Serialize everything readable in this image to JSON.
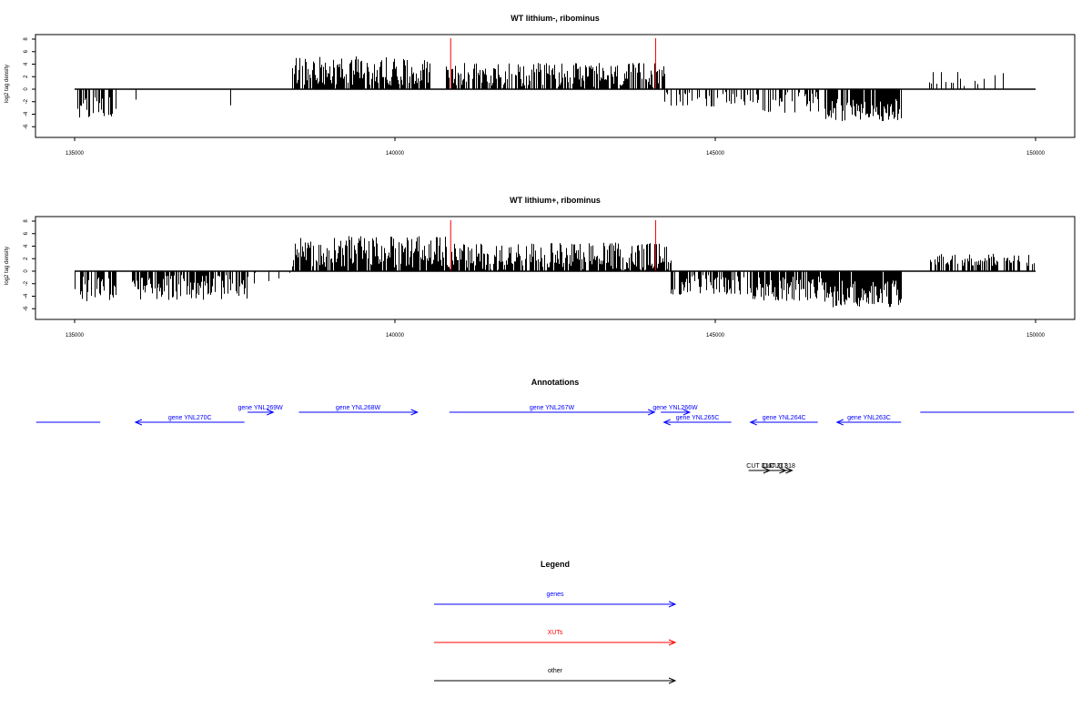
{
  "colors": {
    "genes": "#0000ff",
    "xuts": "#ff0000",
    "other": "#000000",
    "axis": "#000000"
  },
  "chart_data": [
    {
      "type": "bar",
      "title": "WT lithium-, ribominus",
      "ylabel": "log2 tag density",
      "xlim": [
        135000,
        150000
      ],
      "ylim": [
        -6,
        8
      ],
      "x_ticks": [
        135000,
        140000,
        145000,
        150000
      ],
      "x_tick_labels": [
        "135000",
        "140000",
        "145000",
        "150000"
      ],
      "y_ticks": [
        -6,
        -4,
        -2,
        0,
        2,
        4,
        6,
        8
      ],
      "y_tick_labels": [
        "-6",
        "-4",
        "-2",
        "0",
        "2",
        "4",
        "6",
        "8"
      ],
      "baseline": {
        "x": [
          135000,
          150000
        ],
        "y": 0
      },
      "xut_markers": [
        140870,
        144070
      ],
      "segments": [
        {
          "x": [
            135000,
            135650
          ],
          "sign": -1,
          "mean": 2.8,
          "spread": 1.8,
          "density": 0.5
        },
        {
          "x": [
            135900,
            136400
          ],
          "sign": -1,
          "mean": 2.0,
          "spread": 0.8,
          "density": 0.08
        },
        {
          "x": [
            137000,
            137600
          ],
          "sign": -1,
          "mean": 2.0,
          "spread": 1.5,
          "density": 0.06
        },
        {
          "x": [
            138400,
            139500
          ],
          "sign": 1,
          "mean": 3.0,
          "spread": 2.3,
          "density": 0.85
        },
        {
          "x": [
            139500,
            140550
          ],
          "sign": 1,
          "mean": 2.9,
          "spread": 2.3,
          "density": 0.8
        },
        {
          "x": [
            140800,
            144200
          ],
          "sign": 1,
          "mean": 2.2,
          "spread": 2.0,
          "density": 0.75
        },
        {
          "x": [
            144200,
            145700
          ],
          "sign": -1,
          "mean": 1.6,
          "spread": 1.2,
          "density": 0.25
        },
        {
          "x": [
            145700,
            146600
          ],
          "sign": -1,
          "mean": 2.2,
          "spread": 1.8,
          "density": 0.5
        },
        {
          "x": [
            146700,
            147900
          ],
          "sign": -1,
          "mean": 3.3,
          "spread": 1.8,
          "density": 0.9
        },
        {
          "x": [
            148300,
            149500
          ],
          "sign": 1,
          "mean": 1.6,
          "spread": 1.2,
          "density": 0.2
        }
      ]
    },
    {
      "type": "bar",
      "title": "WT lithium+, ribominus",
      "ylabel": "log2 tag density",
      "xlim": [
        135000,
        150000
      ],
      "ylim": [
        -6,
        8
      ],
      "x_ticks": [
        135000,
        140000,
        145000,
        150000
      ],
      "x_tick_labels": [
        "135000",
        "140000",
        "145000",
        "150000"
      ],
      "y_ticks": [
        -6,
        -4,
        -2,
        0,
        2,
        4,
        6,
        8
      ],
      "y_tick_labels": [
        "-6",
        "-4",
        "-2",
        "0",
        "2",
        "4",
        "6",
        "8"
      ],
      "baseline": {
        "x": [
          135000,
          150000
        ],
        "y": 0
      },
      "xut_markers": [
        140870,
        144070
      ],
      "segments": [
        {
          "x": [
            135000,
            135700
          ],
          "sign": -1,
          "mean": 2.8,
          "spread": 2.0,
          "density": 0.6
        },
        {
          "x": [
            135900,
            137700
          ],
          "sign": -1,
          "mean": 2.6,
          "spread": 2.0,
          "density": 0.75
        },
        {
          "x": [
            137700,
            138400
          ],
          "sign": -1,
          "mean": 1.0,
          "spread": 1.2,
          "density": 0.1
        },
        {
          "x": [
            138400,
            140800
          ],
          "sign": 1,
          "mean": 3.1,
          "spread": 2.5,
          "density": 0.9
        },
        {
          "x": [
            140800,
            144300
          ],
          "sign": 1,
          "mean": 2.4,
          "spread": 2.2,
          "density": 0.85
        },
        {
          "x": [
            144300,
            145500
          ],
          "sign": -1,
          "mean": 2.2,
          "spread": 1.6,
          "density": 0.6
        },
        {
          "x": [
            145500,
            146700
          ],
          "sign": -1,
          "mean": 2.8,
          "spread": 2.0,
          "density": 0.75
        },
        {
          "x": [
            146700,
            147900
          ],
          "sign": -1,
          "mean": 3.6,
          "spread": 2.2,
          "density": 0.95
        },
        {
          "x": [
            148300,
            150000
          ],
          "sign": 1,
          "mean": 1.8,
          "spread": 1.0,
          "density": 0.4
        }
      ]
    }
  ],
  "annotations": {
    "title": "Annotations",
    "xlim": [
      135000,
      150000
    ],
    "genes": [
      {
        "label": "",
        "start": 134400,
        "end": 135400,
        "strand": "none",
        "level": 0
      },
      {
        "label": "gene YNL270C",
        "start": 135950,
        "end": 137650,
        "strand": "-",
        "level": 0
      },
      {
        "label": "gene YNL269W",
        "start": 137700,
        "end": 138100,
        "strand": "+",
        "level": 1
      },
      {
        "label": "gene YNL268W",
        "start": 138500,
        "end": 140350,
        "strand": "+",
        "level": 1
      },
      {
        "label": "gene YNL267W",
        "start": 140850,
        "end": 144050,
        "strand": "+",
        "level": 1
      },
      {
        "label": "gene YNL266W",
        "start": 144150,
        "end": 144600,
        "strand": "+",
        "level": 1
      },
      {
        "label": "gene YNL265C",
        "start": 144200,
        "end": 145250,
        "strand": "-",
        "level": 0
      },
      {
        "label": "gene YNL264C",
        "start": 145550,
        "end": 146600,
        "strand": "-",
        "level": 0
      },
      {
        "label": "gene YNL263C",
        "start": 146900,
        "end": 147900,
        "strand": "-",
        "level": 0
      },
      {
        "label": "",
        "start": 148200,
        "end": 150600,
        "strand": "none",
        "level": 1
      }
    ],
    "other": [
      {
        "label": "CUT 316",
        "start": 145520,
        "end": 145850,
        "strand": "+"
      },
      {
        "label": "CUT 317",
        "start": 145750,
        "end": 146100,
        "strand": "+"
      },
      {
        "label": "CUT 318",
        "start": 145900,
        "end": 146200,
        "strand": "+"
      }
    ]
  },
  "legend": {
    "title": "Legend",
    "items": [
      {
        "label": "genes",
        "color": "#0000ff"
      },
      {
        "label": "XUTs",
        "color": "#ff0000"
      },
      {
        "label": "other",
        "color": "#000000"
      }
    ]
  }
}
